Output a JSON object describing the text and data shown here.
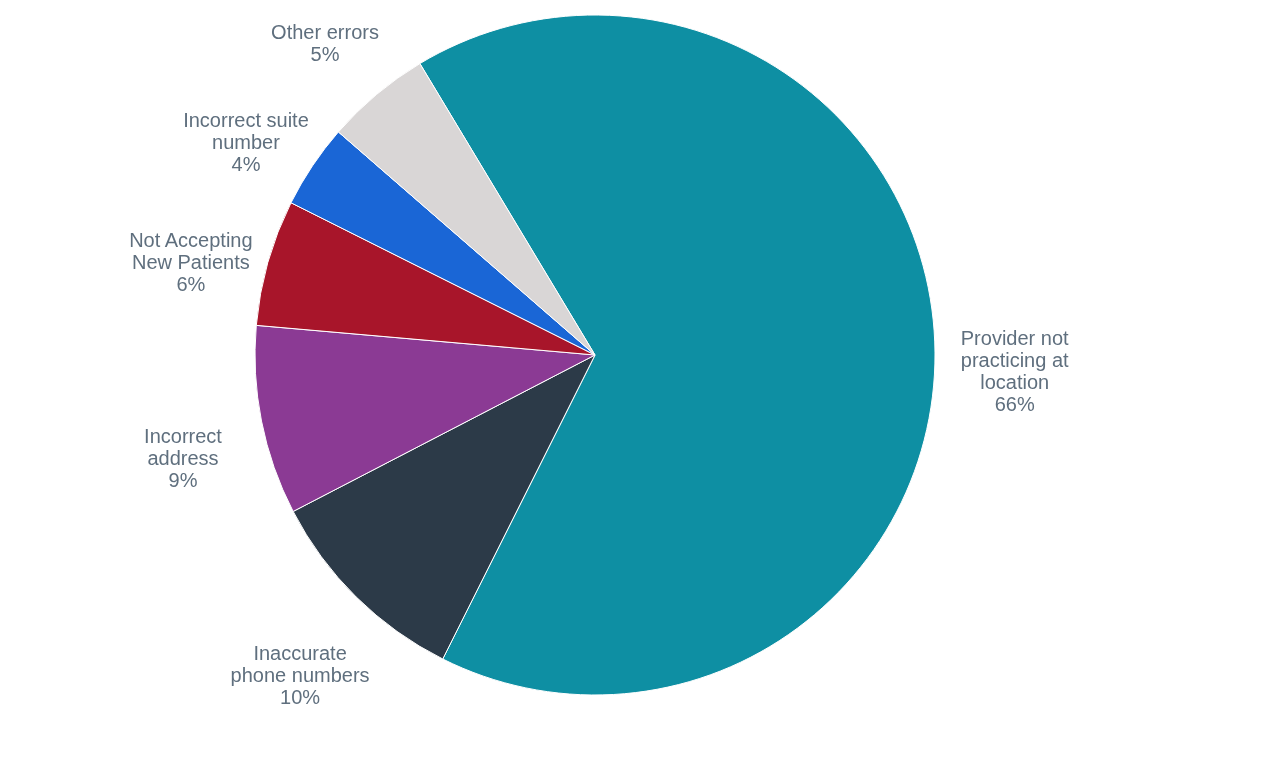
{
  "chart_data": {
    "type": "pie",
    "categories": [
      "Provider not practicing at location",
      "Inaccurate phone numbers",
      "Incorrect address",
      "Not Accepting New Patients",
      "Incorrect suite number",
      "Other errors"
    ],
    "values": [
      66,
      10,
      9,
      6,
      4,
      5
    ],
    "value_labels": [
      "66%",
      "10%",
      "9%",
      "6%",
      "4%",
      "5%"
    ],
    "colors": [
      "#0e8fa3",
      "#2c3a48",
      "#8b3a94",
      "#a8152a",
      "#1a66d6",
      "#d9d6d6"
    ],
    "legend": false
  }
}
